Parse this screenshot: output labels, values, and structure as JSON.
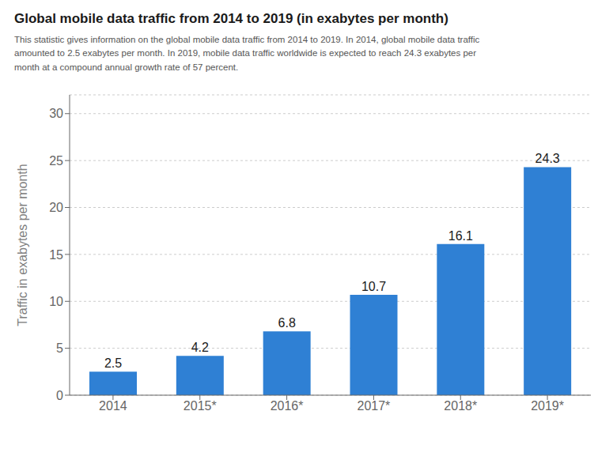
{
  "chart_data": {
    "type": "bar",
    "title": "Global mobile data traffic from 2014 to 2019 (in exabytes per month)",
    "subtitle": "This statistic gives information on the global mobile data traffic from 2014 to 2019. In 2014, global mobile data traffic\namounted to 2.5 exabytes per month. In 2019, mobile data traffic worldwide is expected to reach 24.3 exabytes per\nmonth at a compound annual growth rate of 57 percent.",
    "categories": [
      "2014",
      "2015*",
      "2016*",
      "2017*",
      "2018*",
      "2019*"
    ],
    "values": [
      2.5,
      4.2,
      6.8,
      10.7,
      16.1,
      24.3
    ],
    "color": "#2f80d4",
    "ylabel": "Traffic in exabytes per month",
    "ylim": [
      0,
      32
    ],
    "yticks": [
      0,
      5,
      10,
      15,
      20,
      25,
      30
    ],
    "grid": true,
    "data_labels": true
  }
}
